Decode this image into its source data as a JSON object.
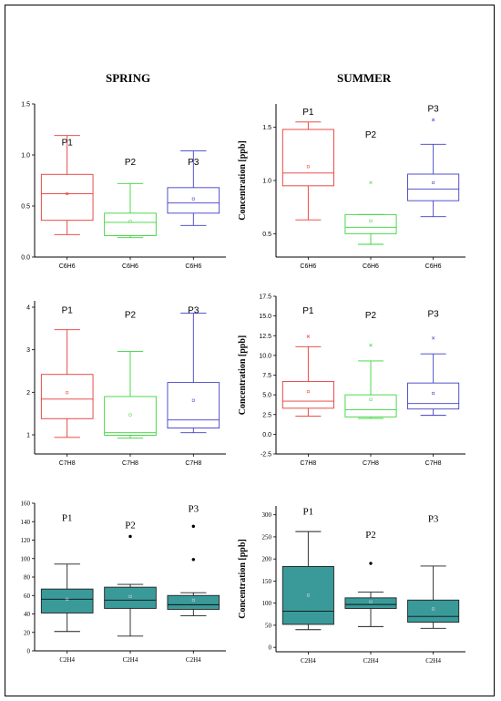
{
  "headings": {
    "spring": "SPRING",
    "summer": "SUMMER"
  },
  "colors": {
    "P1": "#e53935",
    "P2": "#3ad43a",
    "P3": "#3f3fc8",
    "teal": "#3a9a9a"
  },
  "chart_data": [
    {
      "id": "spring-c6h6",
      "type": "box",
      "ylabel": "",
      "ylim": [
        0,
        1.5
      ],
      "yticks": [
        0.0,
        0.5,
        1.0,
        1.5
      ],
      "boxes": [
        {
          "label": "P1",
          "category": "C6H6",
          "min": 0.22,
          "q1": 0.36,
          "median": 0.62,
          "q3": 0.81,
          "max": 1.19,
          "mean": 0.62,
          "outliers": []
        },
        {
          "label": "P2",
          "category": "C6H6",
          "min": 0.19,
          "q1": 0.21,
          "median": 0.34,
          "q3": 0.43,
          "max": 0.72,
          "mean": 0.35,
          "outliers": []
        },
        {
          "label": "P3",
          "category": "C6H6",
          "min": 0.31,
          "q1": 0.43,
          "median": 0.53,
          "q3": 0.68,
          "max": 1.04,
          "mean": 0.57,
          "outliers": []
        }
      ]
    },
    {
      "id": "summer-c6h6",
      "type": "box",
      "ylabel": "Concentration [ppb]",
      "ylim": [
        0.28,
        1.72
      ],
      "yticks": [
        0.5,
        1.0,
        1.5
      ],
      "boxes": [
        {
          "label": "P1",
          "category": "C6H6",
          "min": 0.63,
          "q1": 0.95,
          "median": 1.07,
          "q3": 1.48,
          "max": 1.55,
          "mean": 1.13,
          "outliers": []
        },
        {
          "label": "P2",
          "category": "C6H6",
          "min": 0.4,
          "q1": 0.5,
          "median": 0.56,
          "q3": 0.68,
          "max": 0.68,
          "mean": 0.62,
          "outliers": [
            0.98
          ]
        },
        {
          "label": "P3",
          "category": "C6H6",
          "min": 0.66,
          "q1": 0.81,
          "median": 0.92,
          "q3": 1.06,
          "max": 1.34,
          "mean": 0.98,
          "outliers": [
            1.57
          ]
        }
      ]
    },
    {
      "id": "spring-c7h8",
      "type": "box",
      "ylabel": "",
      "ylim": [
        0.55,
        4.15
      ],
      "yticks": [
        1,
        2,
        3,
        4
      ],
      "boxes": [
        {
          "label": "P1",
          "category": "C7H8",
          "min": 0.94,
          "q1": 1.38,
          "median": 1.84,
          "q3": 2.42,
          "max": 3.47,
          "mean": 1.99,
          "outliers": []
        },
        {
          "label": "P2",
          "category": "C7H8",
          "min": 0.92,
          "q1": 0.99,
          "median": 1.05,
          "q3": 1.9,
          "max": 2.96,
          "mean": 1.47,
          "outliers": []
        },
        {
          "label": "P3",
          "category": "C7H8",
          "min": 1.05,
          "q1": 1.16,
          "median": 1.35,
          "q3": 2.23,
          "max": 3.86,
          "mean": 1.81,
          "outliers": []
        }
      ]
    },
    {
      "id": "summer-c7h8",
      "type": "box",
      "ylabel": "Concentration [ppb]",
      "ylim": [
        -2.5,
        17.5
      ],
      "yticks": [
        -2.5,
        0.0,
        2.5,
        5.0,
        7.5,
        10.0,
        12.5,
        15.0,
        17.5
      ],
      "boxes": [
        {
          "label": "P1",
          "category": "C7H8",
          "min": 2.3,
          "q1": 3.3,
          "median": 4.2,
          "q3": 6.7,
          "max": 11.1,
          "mean": 5.4,
          "outliers": [
            12.4
          ]
        },
        {
          "label": "P2",
          "category": "C7H8",
          "min": 2.0,
          "q1": 2.2,
          "median": 3.1,
          "q3": 5.0,
          "max": 9.3,
          "mean": 4.4,
          "outliers": [
            11.3
          ]
        },
        {
          "label": "P3",
          "category": "C7H8",
          "min": 2.4,
          "q1": 3.2,
          "median": 3.9,
          "q3": 6.5,
          "max": 10.2,
          "mean": 5.2,
          "outliers": [
            12.2
          ]
        }
      ]
    },
    {
      "id": "spring-c2h4",
      "type": "box",
      "ylabel": "",
      "ylim": [
        0,
        160
      ],
      "yticks": [
        0,
        20,
        40,
        60,
        80,
        100,
        120,
        140,
        160
      ],
      "boxes": [
        {
          "label": "P1",
          "category": "C2H4",
          "min": 21,
          "q1": 41,
          "median": 56,
          "q3": 67,
          "max": 94,
          "mean": 56,
          "outliers": []
        },
        {
          "label": "P2",
          "category": "C2H4",
          "min": 16,
          "q1": 46,
          "median": 55,
          "q3": 69,
          "max": 72,
          "mean": 59,
          "outliers": [
            124
          ]
        },
        {
          "label": "P3",
          "category": "C2H4",
          "min": 38,
          "q1": 45,
          "median": 50,
          "q3": 60,
          "max": 63,
          "mean": 55,
          "outliers": [
            99,
            135
          ]
        }
      ]
    },
    {
      "id": "summer-c2h4",
      "type": "box",
      "ylabel": "Concentration [ppb]",
      "ylim": [
        -10,
        320
      ],
      "yticks": [
        0,
        50,
        100,
        150,
        200,
        250,
        300
      ],
      "boxes": [
        {
          "label": "P1",
          "category": "C2H4",
          "min": 40,
          "q1": 52,
          "median": 82,
          "q3": 183,
          "max": 262,
          "mean": 118,
          "outliers": []
        },
        {
          "label": "P2",
          "category": "C2H4",
          "min": 47,
          "q1": 88,
          "median": 97,
          "q3": 112,
          "max": 125,
          "mean": 103,
          "outliers": [
            190
          ]
        },
        {
          "label": "P3",
          "category": "C2H4",
          "min": 43,
          "q1": 57,
          "median": 70,
          "q3": 107,
          "max": 184,
          "mean": 87,
          "outliers": []
        }
      ]
    }
  ]
}
